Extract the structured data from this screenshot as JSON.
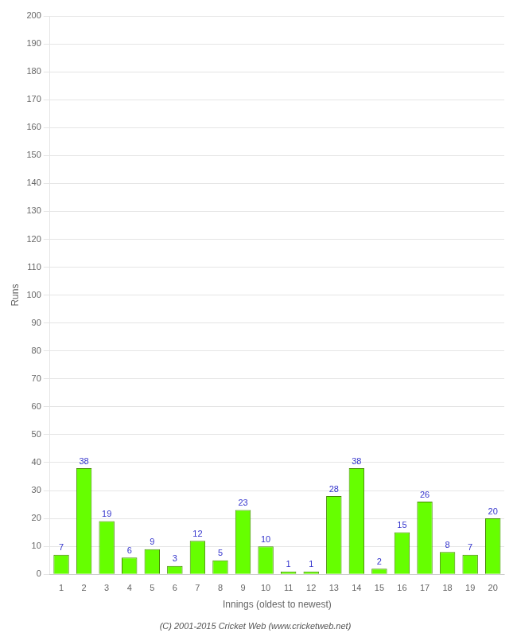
{
  "chart_data": {
    "type": "bar",
    "xlabel": "Innings (oldest to newest)",
    "ylabel": "Runs",
    "categories": [
      1,
      2,
      3,
      4,
      5,
      6,
      7,
      8,
      9,
      10,
      11,
      12,
      13,
      14,
      15,
      16,
      17,
      18,
      19,
      20
    ],
    "values": [
      7,
      38,
      19,
      6,
      9,
      3,
      12,
      5,
      23,
      10,
      1,
      1,
      28,
      38,
      2,
      15,
      26,
      8,
      7,
      20
    ],
    "color": "#66ff00",
    "ylim": [
      0,
      200
    ],
    "yticks": [
      0,
      10,
      20,
      30,
      40,
      50,
      60,
      70,
      80,
      90,
      100,
      110,
      120,
      130,
      140,
      150,
      160,
      170,
      180,
      190,
      200
    ],
    "grid": "y",
    "data_labels": true,
    "annotations": [
      "(C) 2001-2015 Cricket Web (www.cricketweb.net)"
    ]
  }
}
